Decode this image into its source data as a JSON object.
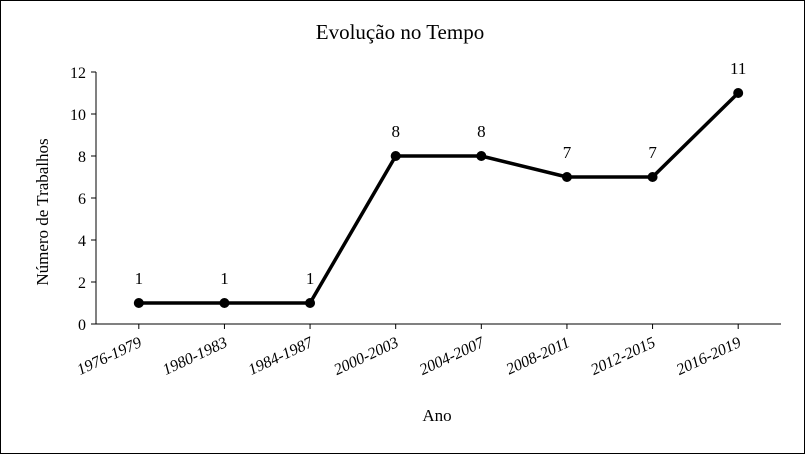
{
  "chart_data": {
    "type": "line",
    "title": "Evolução no Tempo",
    "xlabel": "Ano",
    "ylabel": "Número de Trabalhos",
    "categories": [
      "1976-1979",
      "1980-1983",
      "1984-1987",
      "2000-2003",
      "2004-2007",
      "2008-2011",
      "2012-2015",
      "2016-2019"
    ],
    "series": [
      {
        "values": [
          1,
          1,
          1,
          8,
          8,
          7,
          7,
          11
        ]
      }
    ],
    "data_labels": [
      "1",
      "1",
      "1",
      "8",
      "8",
      "7",
      "7",
      "11"
    ],
    "ylim": [
      0,
      12
    ],
    "yticks": [
      "0",
      "2",
      "4",
      "6",
      "8",
      "10",
      "12"
    ],
    "grid": false,
    "legend": "none",
    "line_color": "#000000"
  }
}
